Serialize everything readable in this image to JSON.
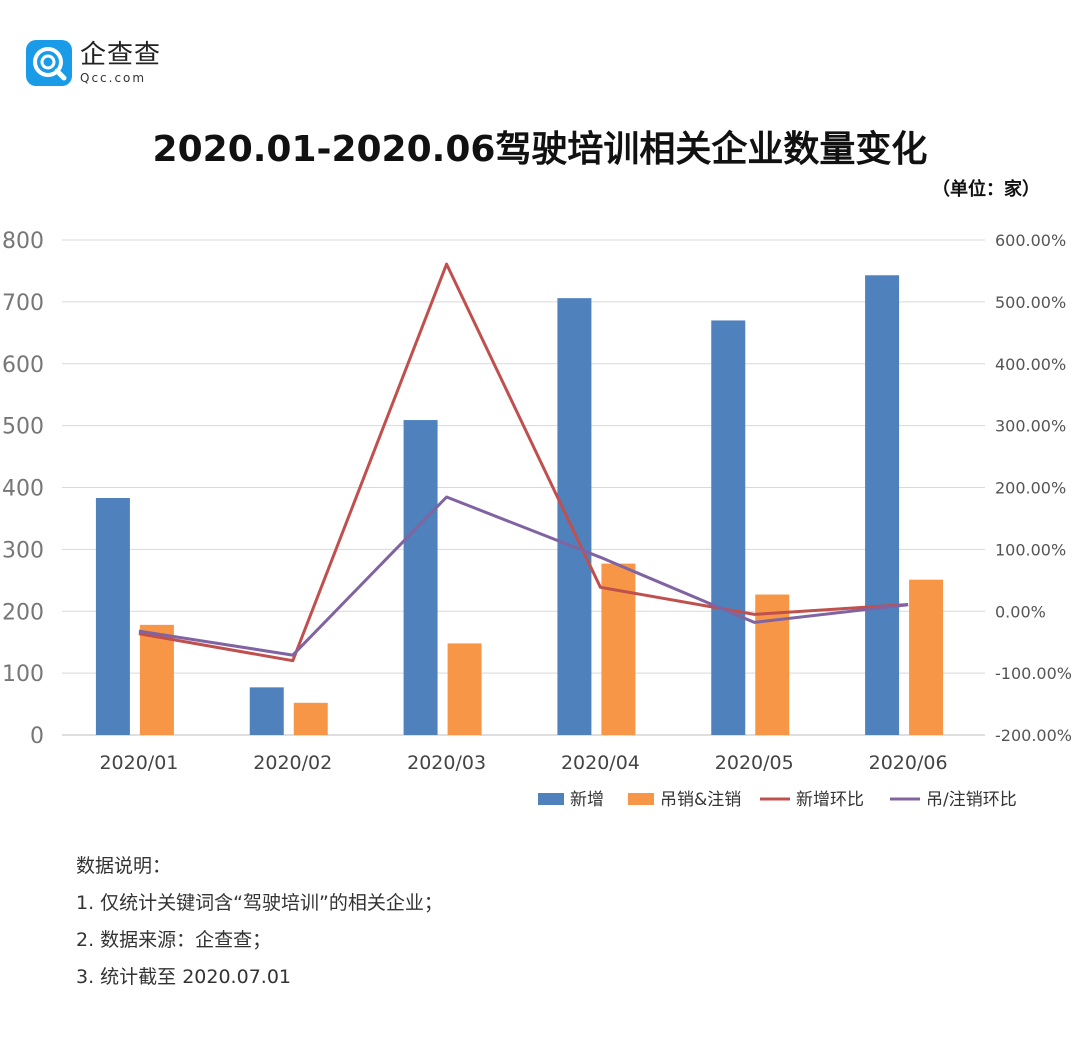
{
  "logo": {
    "cn": "企查查",
    "en": "Qcc.com"
  },
  "title": "2020.01-2020.06驾驶培训相关企业数量变化",
  "unit": "（单位：家）",
  "colors": {
    "new": "#4f81bd",
    "revoked": "#f79646",
    "new_mom": "#c0504d",
    "revoked_mom": "#8064a2",
    "grid": "#d9d9d9",
    "logo": "#1a9be8"
  },
  "chart_data": {
    "type": "bar",
    "categories": [
      "2020/01",
      "2020/02",
      "2020/03",
      "2020/04",
      "2020/05",
      "2020/06"
    ],
    "series": [
      {
        "name": "新增",
        "kind": "bar",
        "axis": "left",
        "values": [
          383,
          77,
          509,
          706,
          670,
          743
        ]
      },
      {
        "name": "吊销&注销",
        "kind": "bar",
        "axis": "left",
        "values": [
          178,
          52,
          148,
          277,
          227,
          251
        ]
      },
      {
        "name": "新增环比",
        "kind": "line",
        "axis": "right",
        "values": [
          -36.1,
          -79.9,
          561.0,
          38.7,
          -5.1,
          10.9
        ]
      },
      {
        "name": "吊/注销环比",
        "kind": "line",
        "axis": "right",
        "values": [
          -32.0,
          -70.8,
          184.6,
          87.2,
          -18.1,
          10.6
        ]
      }
    ],
    "left_axis": {
      "min": 0,
      "max": 800,
      "step": 100,
      "ticks": [
        "0",
        "100",
        "200",
        "300",
        "400",
        "500",
        "600",
        "700",
        "800"
      ]
    },
    "right_axis": {
      "min": -200,
      "max": 600,
      "step": 100,
      "ticks": [
        "-200.00%",
        "-100.00%",
        "0.00%",
        "100.00%",
        "200.00%",
        "300.00%",
        "400.00%",
        "500.00%",
        "600.00%"
      ]
    },
    "legend_position": "bottom-right",
    "grid": true
  },
  "notes": {
    "heading": "数据说明：",
    "items": [
      "1. 仅统计关键词含“驾驶培训”的相关企业；",
      "2. 数据来源：企查查；",
      "3. 统计截至 2020.07.01"
    ]
  }
}
